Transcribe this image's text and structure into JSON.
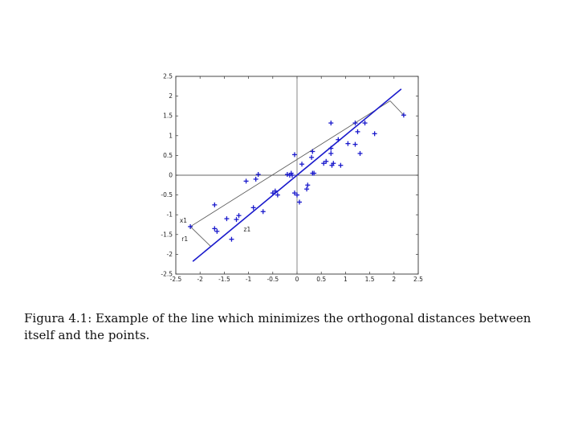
{
  "chart_data": {
    "type": "scatter",
    "xlim": [
      -2.5,
      2.5
    ],
    "ylim": [
      -2.5,
      2.5
    ],
    "x_ticks": [
      -2.5,
      -2,
      -1.5,
      -1,
      -0.5,
      0,
      0.5,
      1,
      1.5,
      2,
      2.5
    ],
    "y_ticks": [
      -2.5,
      -2,
      -1.5,
      -1,
      -0.5,
      0,
      0.5,
      1,
      1.5,
      2,
      2.5
    ],
    "x_tick_labels": [
      "-2.5",
      "-2",
      "-1.5",
      "-1",
      "-0.5",
      "0",
      "0.5",
      "1",
      "1.5",
      "2",
      "2.5"
    ],
    "y_tick_labels": [
      "-2.5",
      "-2",
      "-1.5",
      "-1",
      "-0.5",
      "0",
      "0.5",
      "1",
      "1.5",
      "2",
      "2.5"
    ],
    "grid": false,
    "point_color": "#1a1acc",
    "points": [
      [
        -2.2,
        -1.3
      ],
      [
        -1.7,
        -0.75
      ],
      [
        -1.7,
        -1.35
      ],
      [
        -1.65,
        -1.42
      ],
      [
        -1.45,
        -1.1
      ],
      [
        -1.35,
        -1.62
      ],
      [
        -1.25,
        -1.12
      ],
      [
        -1.2,
        -1.02
      ],
      [
        -1.05,
        -0.15
      ],
      [
        -0.9,
        -0.82
      ],
      [
        -0.85,
        -0.1
      ],
      [
        -0.8,
        0.02
      ],
      [
        -0.7,
        -0.92
      ],
      [
        -0.5,
        -0.45
      ],
      [
        -0.45,
        -0.4
      ],
      [
        -0.4,
        -0.5
      ],
      [
        -0.2,
        0.02
      ],
      [
        -0.15,
        0.0
      ],
      [
        -0.12,
        0.05
      ],
      [
        -0.1,
        0.0
      ],
      [
        -0.05,
        0.52
      ],
      [
        -0.05,
        -0.45
      ],
      [
        0.0,
        -0.5
      ],
      [
        0.05,
        -0.68
      ],
      [
        0.1,
        0.28
      ],
      [
        0.2,
        -0.35
      ],
      [
        0.22,
        -0.25
      ],
      [
        0.3,
        0.45
      ],
      [
        0.32,
        0.6
      ],
      [
        0.32,
        0.05
      ],
      [
        0.35,
        0.05
      ],
      [
        0.55,
        0.3
      ],
      [
        0.6,
        0.35
      ],
      [
        0.7,
        1.32
      ],
      [
        0.7,
        0.55
      ],
      [
        0.7,
        0.68
      ],
      [
        0.72,
        0.25
      ],
      [
        0.75,
        0.3
      ],
      [
        0.85,
        0.9
      ],
      [
        0.9,
        0.25
      ],
      [
        1.05,
        0.8
      ],
      [
        1.2,
        1.32
      ],
      [
        1.2,
        0.78
      ],
      [
        1.25,
        1.1
      ],
      [
        1.3,
        0.55
      ],
      [
        1.4,
        1.32
      ],
      [
        1.6,
        1.05
      ],
      [
        2.2,
        1.52
      ]
    ],
    "fit_line": {
      "x": [
        -2.15,
        2.15
      ],
      "y": [
        -2.18,
        2.18
      ]
    },
    "orthogonal_ref_line": {
      "x": [
        -2.6,
        2.6
      ],
      "y": [
        0.0,
        0.0
      ]
    },
    "reference_line": {
      "x": [
        -2.2,
        1.92
      ],
      "y": [
        -1.3,
        1.88
      ]
    },
    "projections": [
      {
        "from": [
          -2.2,
          -1.3
        ],
        "to": [
          -1.78,
          -1.8
        ]
      },
      {
        "from": [
          1.92,
          1.88
        ],
        "to": [
          2.2,
          1.52
        ]
      }
    ],
    "annotations": [
      {
        "text": "x1",
        "x": -2.42,
        "y": -1.2
      },
      {
        "text": "r1",
        "x": -2.38,
        "y": -1.67
      },
      {
        "text": "z1",
        "x": -1.1,
        "y": -1.42
      }
    ]
  },
  "caption": "Figura 4.1: Example of the line which minimizes the orthogonal distances between itself and the points."
}
